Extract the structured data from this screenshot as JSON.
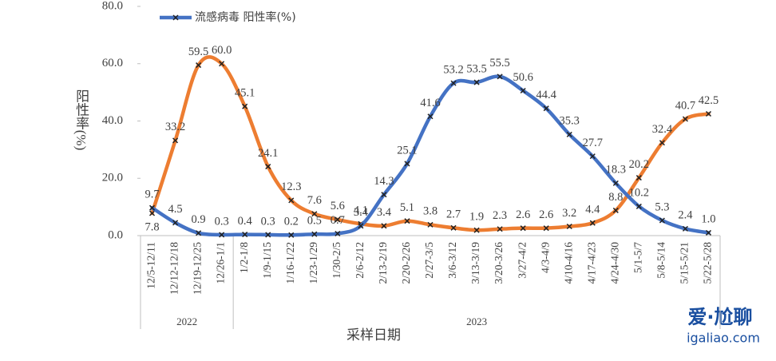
{
  "chart_data": {
    "type": "line",
    "x_label": "采样日期",
    "y_label": "阳性率(%)",
    "categories": [
      "12/5-12/11",
      "12/12-12/18",
      "12/19-12/25",
      "12/26-1/1",
      "1/2-1/8",
      "1/9-1/15",
      "1/16-1/22",
      "1/23-1/29",
      "1/30-2/5",
      "2/6-2/12",
      "2/13-2/19",
      "2/20-2/26",
      "2/27-3/5",
      "3/6-3/12",
      "3/13-3/19",
      "3/20-3/26",
      "3/27-4/2",
      "4/3-4/9",
      "4/10-4/16",
      "4/17-4/23",
      "4/24-4/30",
      "5/1-5/7",
      "5/8-5/14",
      "5/15-5/21",
      "5/22-5/28"
    ],
    "groups": [
      {
        "label": "2022",
        "count": 4
      },
      {
        "label": "2023",
        "count": 21
      }
    ],
    "series": [
      {
        "color": "#ed7d31",
        "values": [
          7.8,
          33.2,
          59.5,
          60,
          45.1,
          24.1,
          12.3,
          7.6,
          5.6,
          4.1,
          3.4,
          5.1,
          3.8,
          2.7,
          1.9,
          2.3,
          2.6,
          2.6,
          3.2,
          4.4,
          8.8,
          20.2,
          32.4,
          40.7,
          42.5
        ],
        "value_labels": [
          "7.8",
          "33.2",
          "59.5",
          "60.0",
          "45.1",
          "24.1",
          "12.3",
          "7.6",
          "5.6",
          "4.1",
          "3.4",
          "5.1",
          "3.8",
          "2.7",
          "1.9",
          "2.3",
          "2.6",
          "2.6",
          "3.2",
          "4.4",
          "8.8",
          "20.2",
          "32.4",
          "40.7",
          "42.5"
        ]
      },
      {
        "name": "流感病毒 阳性率(%)",
        "color": "#4472c4",
        "values": [
          9.7,
          4.5,
          0.9,
          0.3,
          0.4,
          0.3,
          0.2,
          0.5,
          0.7,
          3.4,
          14.3,
          25.1,
          41.6,
          53.2,
          53.5,
          55.5,
          50.6,
          44.4,
          35.3,
          27.7,
          18.3,
          10.2,
          5.3,
          2.4,
          1
        ],
        "value_labels": [
          "9.7",
          "4.5",
          "0.9",
          "0.3",
          "0.4",
          "0.3",
          "0.2",
          "0.5",
          "0.7",
          "3.4",
          "14.3",
          "25.1",
          "41.6",
          "53.2",
          "53.5",
          "55.5",
          "50.6",
          "44.4",
          "35.3",
          "27.7",
          "18.3",
          "10.2",
          "5.3",
          "2.4",
          "1.0"
        ]
      }
    ],
    "ylim": [
      0,
      80
    ],
    "yticks": [
      {
        "value": 0,
        "label": "0.0"
      },
      {
        "value": 20,
        "label": "20.0"
      },
      {
        "value": 40,
        "label": "40.0"
      },
      {
        "value": 60,
        "label": "60.0"
      },
      {
        "value": 80,
        "label": "80.0"
      }
    ],
    "watermark": "爱·尬聊",
    "watermark_url": "igaliao.com"
  }
}
